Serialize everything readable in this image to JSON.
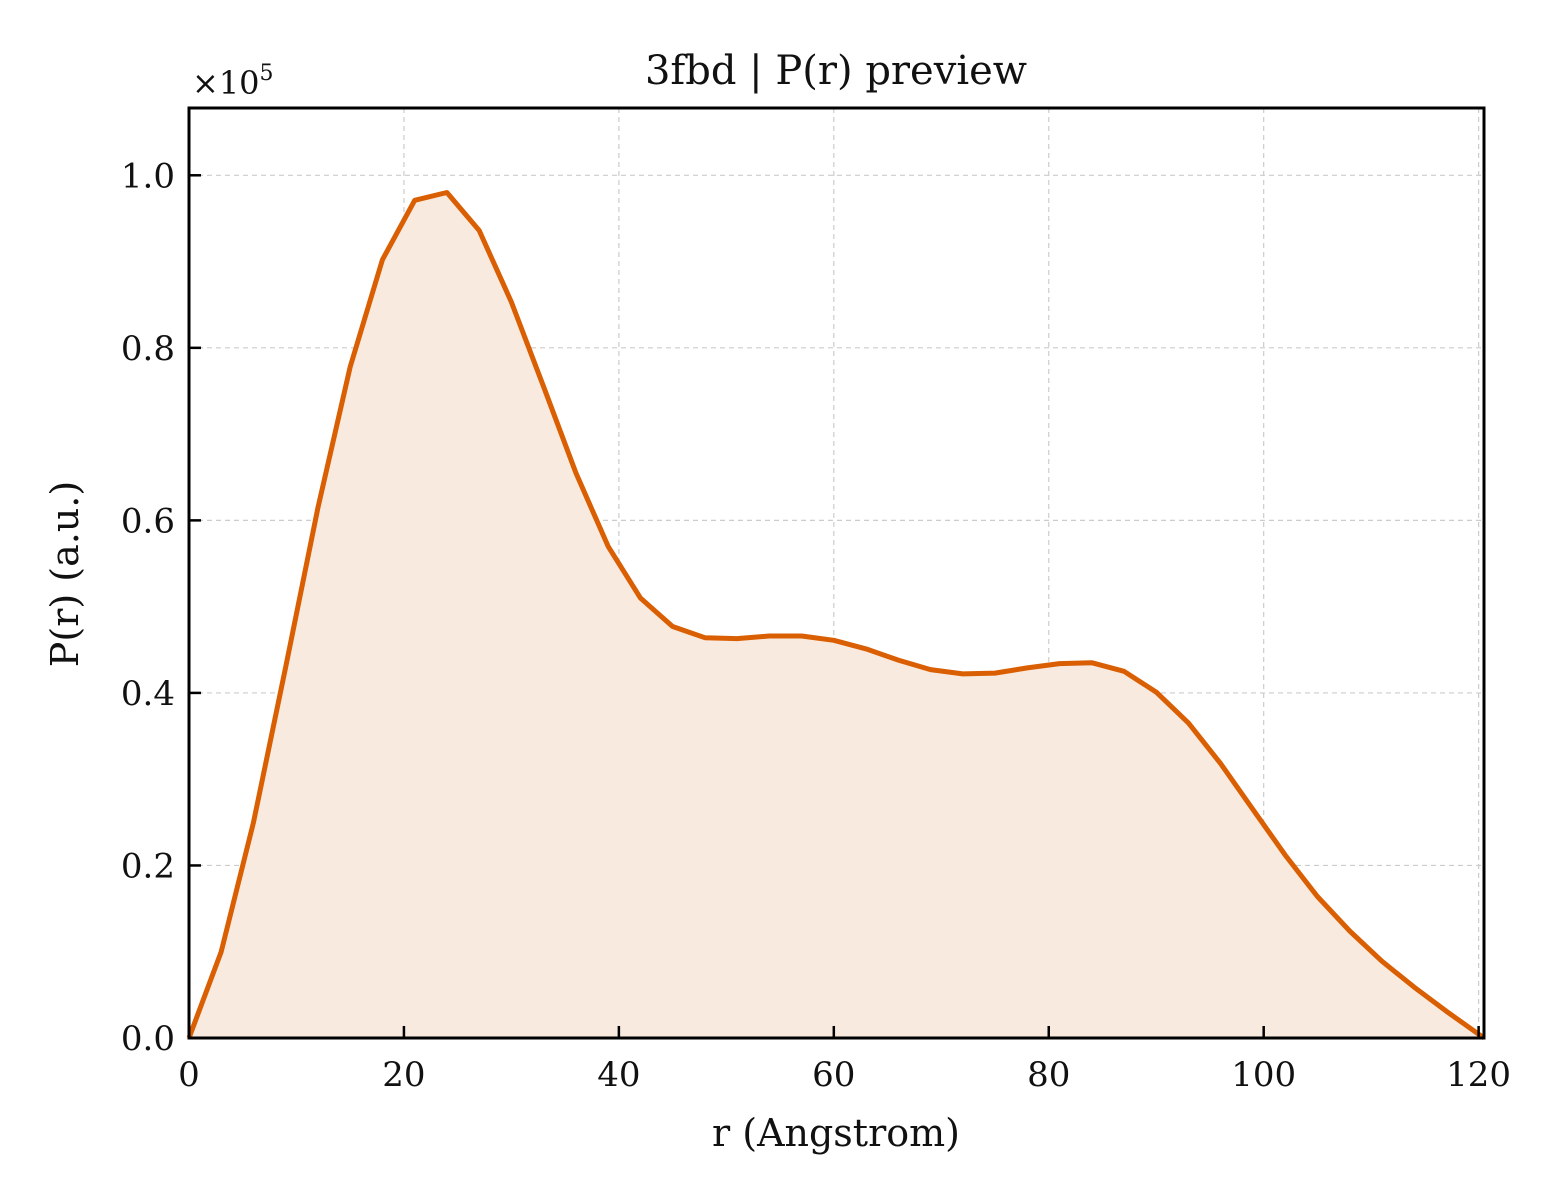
{
  "chart_data": {
    "type": "area",
    "title": "3fbd | P(r) preview",
    "xlabel": "r (Angstrom)",
    "ylabel": "P(r) (a.u.)",
    "y_multiplier_prefix": "×10",
    "y_multiplier_exponent": "5",
    "xlim": [
      0,
      120.5
    ],
    "ylim": [
      0,
      1.078
    ],
    "xticks": [
      0,
      20,
      40,
      60,
      80,
      100,
      120
    ],
    "xtick_labels": [
      "0",
      "20",
      "40",
      "60",
      "80",
      "100",
      "120"
    ],
    "yticks": [
      0.0,
      0.2,
      0.4,
      0.6,
      0.8,
      1.0
    ],
    "ytick_labels": [
      "0.0",
      "0.2",
      "0.4",
      "0.6",
      "0.8",
      "1.0"
    ],
    "grid": true,
    "line_color": "#d95f02",
    "fill_color": "#f9eae0",
    "series": [
      {
        "x": [
          0,
          3,
          6,
          9,
          12,
          15,
          18,
          21,
          24,
          27,
          30,
          33,
          36,
          39,
          42,
          45,
          48,
          51,
          54,
          57,
          60,
          63,
          66,
          69,
          72,
          75,
          78,
          81,
          84,
          87,
          90,
          93,
          96,
          99,
          102,
          105,
          108,
          111,
          114,
          117,
          120.5
        ],
        "y": [
          0.0,
          0.1,
          0.25,
          0.43,
          0.615,
          0.778,
          0.902,
          0.971,
          0.98,
          0.936,
          0.853,
          0.755,
          0.655,
          0.57,
          0.51,
          0.477,
          0.464,
          0.463,
          0.466,
          0.466,
          0.461,
          0.451,
          0.438,
          0.427,
          0.422,
          0.423,
          0.429,
          0.434,
          0.435,
          0.425,
          0.401,
          0.365,
          0.318,
          0.265,
          0.212,
          0.164,
          0.124,
          0.089,
          0.059,
          0.031,
          0.0
        ]
      }
    ]
  }
}
